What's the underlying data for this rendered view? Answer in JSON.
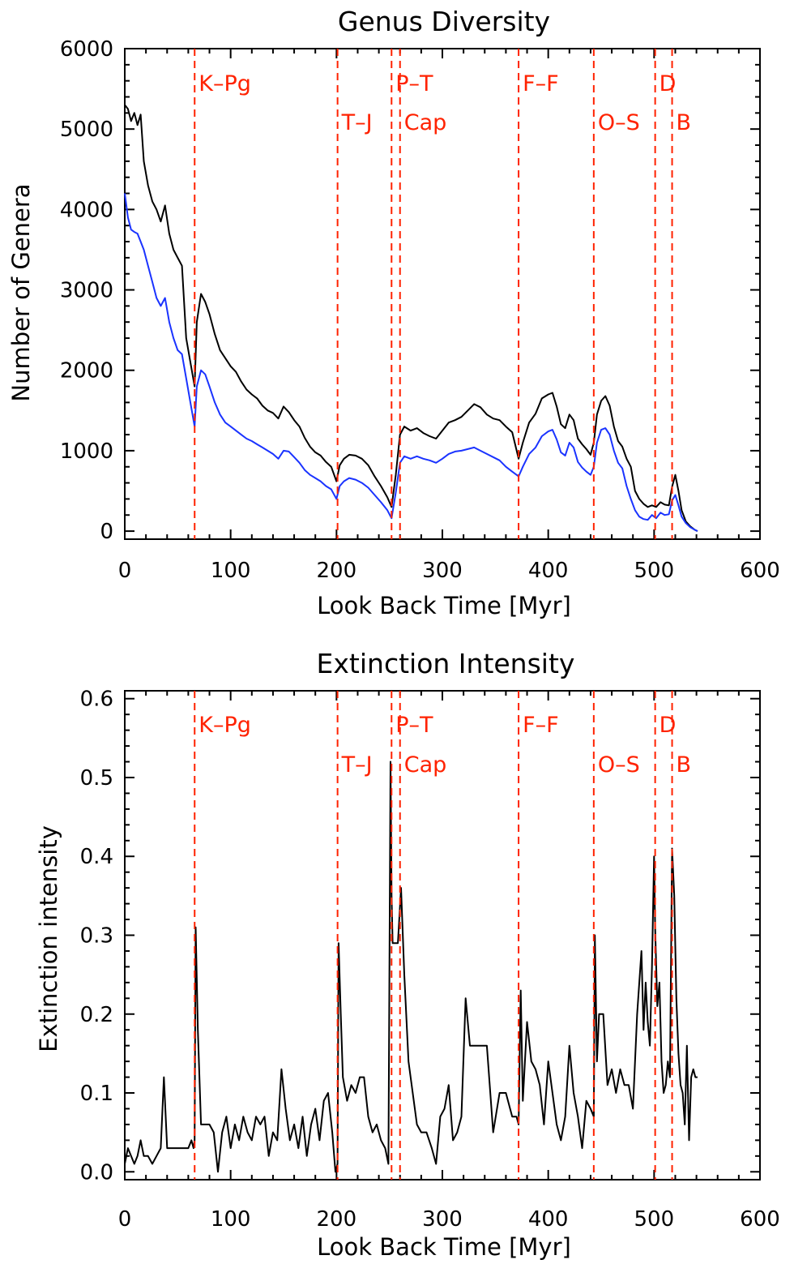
{
  "chart_data": [
    {
      "type": "line",
      "title": "Genus Diversity",
      "xlabel": "Look Back Time [Myr]",
      "ylabel": "Number of Genera",
      "xlim": [
        0,
        600
      ],
      "ylim": [
        -100,
        6000
      ],
      "xticks": [
        "0",
        "100",
        "200",
        "300",
        "400",
        "500",
        "600"
      ],
      "yticks": [
        "0",
        "1000",
        "2000",
        "3000",
        "4000",
        "5000",
        "6000"
      ],
      "xtick_values": [
        0,
        100,
        200,
        300,
        400,
        500,
        600
      ],
      "ytick_values": [
        0,
        1000,
        2000,
        3000,
        4000,
        5000,
        6000
      ],
      "grid": false,
      "events": [
        {
          "label": "K–Pg",
          "x": 66,
          "row": 0
        },
        {
          "label": "T–J",
          "x": 201,
          "row": 1
        },
        {
          "label": "P–T",
          "x": 252,
          "row": 0
        },
        {
          "label": "Cap",
          "x": 260,
          "row": 1
        },
        {
          "label": "F–F",
          "x": 372,
          "row": 0
        },
        {
          "label": "O–S",
          "x": 443,
          "row": 1
        },
        {
          "label": "D",
          "x": 501,
          "row": 0
        },
        {
          "label": "B",
          "x": 517,
          "row": 1
        }
      ],
      "series": [
        {
          "color": "#000000",
          "x": [
            0,
            3,
            6,
            9,
            12,
            15,
            18,
            22,
            26,
            30,
            34,
            38,
            42,
            46,
            50,
            54,
            58,
            62,
            66,
            68,
            72,
            76,
            80,
            85,
            90,
            95,
            100,
            105,
            110,
            115,
            120,
            125,
            130,
            135,
            140,
            145,
            150,
            155,
            160,
            165,
            170,
            175,
            180,
            185,
            190,
            195,
            200,
            203,
            207,
            212,
            218,
            224,
            230,
            236,
            242,
            248,
            252,
            256,
            260,
            264,
            270,
            276,
            282,
            288,
            294,
            300,
            306,
            312,
            318,
            324,
            330,
            336,
            342,
            348,
            354,
            360,
            366,
            372,
            376,
            382,
            388,
            394,
            400,
            404,
            408,
            412,
            416,
            420,
            424,
            428,
            432,
            436,
            440,
            443,
            446,
            450,
            454,
            458,
            462,
            466,
            470,
            474,
            478,
            482,
            486,
            490,
            494,
            498,
            502,
            506,
            510,
            514,
            517,
            520,
            523,
            526,
            530,
            534,
            538,
            541
          ],
          "y": [
            5300,
            5250,
            5100,
            5200,
            5050,
            5180,
            4600,
            4300,
            4100,
            4000,
            3850,
            4050,
            3700,
            3500,
            3400,
            3300,
            2400,
            2100,
            1800,
            2600,
            2950,
            2850,
            2700,
            2450,
            2250,
            2150,
            2050,
            1980,
            1860,
            1760,
            1700,
            1650,
            1560,
            1500,
            1470,
            1400,
            1550,
            1480,
            1380,
            1300,
            1160,
            1050,
            980,
            940,
            860,
            800,
            620,
            820,
            900,
            950,
            940,
            900,
            820,
            680,
            560,
            420,
            300,
            700,
            1200,
            1300,
            1250,
            1280,
            1220,
            1180,
            1150,
            1250,
            1350,
            1380,
            1420,
            1500,
            1580,
            1540,
            1450,
            1400,
            1380,
            1300,
            1230,
            900,
            1100,
            1350,
            1460,
            1650,
            1700,
            1720,
            1550,
            1330,
            1280,
            1450,
            1380,
            1150,
            1080,
            1020,
            950,
            1100,
            1450,
            1620,
            1680,
            1560,
            1300,
            1120,
            1050,
            900,
            800,
            500,
            400,
            340,
            300,
            320,
            300,
            360,
            330,
            320,
            550,
            700,
            500,
            260,
            120,
            60,
            20,
            0
          ]
        },
        {
          "color": "#1a33ff",
          "x": [
            0,
            3,
            6,
            9,
            12,
            15,
            18,
            22,
            26,
            30,
            34,
            38,
            42,
            46,
            50,
            54,
            58,
            62,
            66,
            68,
            72,
            76,
            80,
            85,
            90,
            95,
            100,
            105,
            110,
            115,
            120,
            125,
            130,
            135,
            140,
            145,
            150,
            155,
            160,
            165,
            170,
            175,
            180,
            185,
            190,
            195,
            200,
            203,
            207,
            212,
            218,
            224,
            230,
            236,
            242,
            248,
            252,
            256,
            260,
            264,
            270,
            276,
            282,
            288,
            294,
            300,
            306,
            312,
            318,
            324,
            330,
            336,
            342,
            348,
            354,
            360,
            366,
            372,
            376,
            382,
            388,
            394,
            400,
            404,
            408,
            412,
            416,
            420,
            424,
            428,
            432,
            436,
            440,
            443,
            446,
            450,
            454,
            458,
            462,
            466,
            470,
            474,
            478,
            482,
            486,
            490,
            494,
            498,
            502,
            506,
            510,
            514,
            517,
            520,
            523,
            526,
            530,
            534,
            538,
            541
          ],
          "y": [
            4200,
            3900,
            3750,
            3720,
            3700,
            3600,
            3500,
            3300,
            3100,
            2900,
            2800,
            2900,
            2600,
            2400,
            2250,
            2200,
            1900,
            1600,
            1300,
            1800,
            2000,
            1950,
            1800,
            1600,
            1450,
            1350,
            1300,
            1250,
            1200,
            1150,
            1120,
            1080,
            1040,
            1000,
            960,
            900,
            1000,
            990,
            920,
            850,
            760,
            700,
            660,
            620,
            560,
            520,
            400,
            560,
            620,
            660,
            640,
            600,
            540,
            450,
            360,
            260,
            160,
            480,
            850,
            930,
            900,
            930,
            900,
            880,
            850,
            900,
            960,
            990,
            1000,
            1020,
            1040,
            1000,
            960,
            920,
            880,
            800,
            740,
            680,
            800,
            960,
            1040,
            1180,
            1240,
            1260,
            1140,
            980,
            940,
            1100,
            1040,
            860,
            790,
            740,
            700,
            800,
            1100,
            1260,
            1280,
            1200,
            1000,
            850,
            780,
            560,
            400,
            260,
            180,
            150,
            140,
            200,
            160,
            230,
            200,
            210,
            380,
            450,
            320,
            180,
            100,
            50,
            20,
            0
          ]
        }
      ]
    },
    {
      "type": "line",
      "title": "Extinction Intensity",
      "xlabel": "Look Back Time [Myr]",
      "ylabel": "Extinction intensity",
      "xlim": [
        0,
        600
      ],
      "ylim": [
        -0.01,
        0.61
      ],
      "xticks": [
        "0",
        "100",
        "200",
        "300",
        "400",
        "500",
        "600"
      ],
      "yticks": [
        "0.0",
        "0.1",
        "0.2",
        "0.3",
        "0.4",
        "0.5",
        "0.6"
      ],
      "xtick_values": [
        0,
        100,
        200,
        300,
        400,
        500,
        600
      ],
      "ytick_values": [
        0,
        0.1,
        0.2,
        0.3,
        0.4,
        0.5,
        0.6
      ],
      "grid": false,
      "events": [
        {
          "label": "K–Pg",
          "x": 66,
          "row": 0
        },
        {
          "label": "T–J",
          "x": 201,
          "row": 1
        },
        {
          "label": "P–T",
          "x": 252,
          "row": 0
        },
        {
          "label": "Cap",
          "x": 260,
          "row": 1
        },
        {
          "label": "F–F",
          "x": 372,
          "row": 0
        },
        {
          "label": "O–S",
          "x": 443,
          "row": 1
        },
        {
          "label": "D",
          "x": 501,
          "row": 0
        },
        {
          "label": "B",
          "x": 517,
          "row": 1
        }
      ],
      "series": [
        {
          "color": "#000000",
          "x": [
            0,
            3,
            6,
            9,
            12,
            15,
            18,
            22,
            26,
            30,
            34,
            37,
            40,
            45,
            50,
            55,
            60,
            63,
            65,
            66,
            67,
            69,
            72,
            76,
            80,
            84,
            88,
            92,
            96,
            100,
            104,
            108,
            112,
            116,
            120,
            124,
            128,
            132,
            136,
            140,
            144,
            148,
            152,
            156,
            160,
            164,
            168,
            172,
            176,
            180,
            184,
            188,
            192,
            196,
            199,
            201,
            202,
            204,
            206,
            210,
            214,
            218,
            222,
            226,
            230,
            234,
            238,
            242,
            246,
            249,
            251,
            252,
            253,
            255,
            258,
            261,
            264,
            268,
            272,
            276,
            280,
            285,
            290,
            294,
            298,
            302,
            306,
            310,
            314,
            318,
            322,
            326,
            330,
            336,
            342,
            348,
            354,
            360,
            366,
            370,
            372,
            374,
            376,
            380,
            384,
            388,
            392,
            396,
            400,
            404,
            408,
            412,
            416,
            420,
            424,
            428,
            432,
            436,
            440,
            443,
            444,
            446,
            448,
            452,
            456,
            460,
            464,
            468,
            472,
            476,
            480,
            484,
            488,
            490,
            492,
            494,
            496,
            498,
            500,
            501,
            503,
            505,
            507,
            509,
            511,
            513,
            515,
            517,
            519,
            521,
            523,
            525,
            527,
            529,
            531,
            533,
            535,
            537,
            539,
            541
          ],
          "y": [
            0.01,
            0.03,
            0.02,
            0.01,
            0.02,
            0.04,
            0.02,
            0.02,
            0.01,
            0.02,
            0.03,
            0.12,
            0.03,
            0.03,
            0.03,
            0.03,
            0.03,
            0.04,
            0.03,
            0.04,
            0.31,
            0.18,
            0.06,
            0.06,
            0.06,
            0.05,
            0.0,
            0.05,
            0.07,
            0.03,
            0.06,
            0.04,
            0.07,
            0.05,
            0.04,
            0.07,
            0.06,
            0.07,
            0.02,
            0.05,
            0.04,
            0.13,
            0.08,
            0.04,
            0.06,
            0.03,
            0.07,
            0.02,
            0.06,
            0.08,
            0.04,
            0.09,
            0.1,
            0.05,
            0.0,
            0.01,
            0.29,
            0.2,
            0.12,
            0.09,
            0.11,
            0.1,
            0.12,
            0.12,
            0.07,
            0.05,
            0.06,
            0.04,
            0.03,
            0.01,
            0.52,
            0.35,
            0.29,
            0.29,
            0.29,
            0.36,
            0.25,
            0.14,
            0.1,
            0.06,
            0.05,
            0.05,
            0.03,
            0.01,
            0.07,
            0.08,
            0.11,
            0.04,
            0.05,
            0.07,
            0.22,
            0.16,
            0.16,
            0.16,
            0.16,
            0.05,
            0.1,
            0.1,
            0.07,
            0.07,
            0.06,
            0.23,
            0.09,
            0.19,
            0.14,
            0.13,
            0.11,
            0.06,
            0.14,
            0.1,
            0.06,
            0.04,
            0.07,
            0.16,
            0.1,
            0.07,
            0.03,
            0.09,
            0.08,
            0.07,
            0.3,
            0.14,
            0.2,
            0.2,
            0.11,
            0.13,
            0.1,
            0.13,
            0.11,
            0.11,
            0.08,
            0.2,
            0.28,
            0.18,
            0.24,
            0.19,
            0.16,
            0.26,
            0.4,
            0.31,
            0.21,
            0.24,
            0.14,
            0.1,
            0.11,
            0.14,
            0.12,
            0.41,
            0.35,
            0.22,
            0.15,
            0.11,
            0.1,
            0.06,
            0.16,
            0.04,
            0.12,
            0.13,
            0.12,
            0.12
          ]
        }
      ]
    }
  ]
}
